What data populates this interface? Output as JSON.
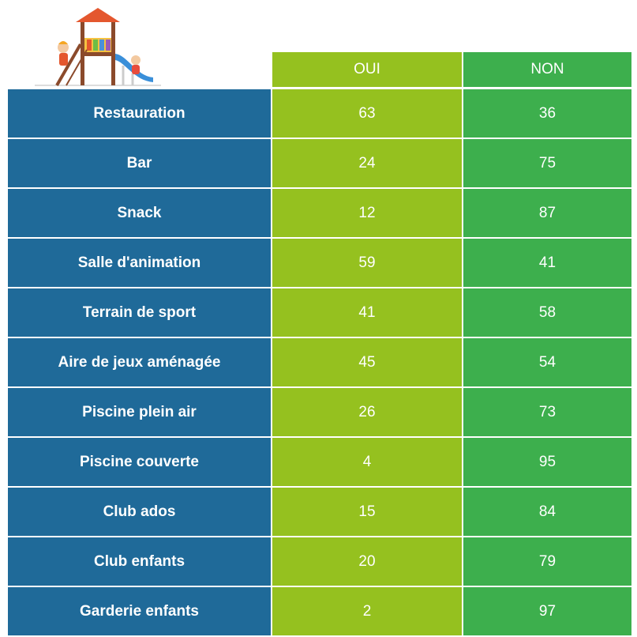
{
  "table": {
    "header": [
      "OUI",
      "NON"
    ],
    "rows": [
      [
        "Restauration",
        63,
        36
      ],
      [
        "Bar",
        24,
        75
      ],
      [
        "Snack",
        12,
        87
      ],
      [
        "Salle d'animation",
        59,
        41
      ],
      [
        "Terrain de sport",
        41,
        58
      ],
      [
        "Aire de jeux aménagée",
        45,
        54
      ],
      [
        "Piscine plein air",
        26,
        73
      ],
      [
        "Piscine couverte",
        4,
        95
      ],
      [
        "Club ados",
        15,
        84
      ],
      [
        "Club enfants",
        20,
        79
      ],
      [
        "Garderie enfants",
        2,
        97
      ]
    ]
  }
}
